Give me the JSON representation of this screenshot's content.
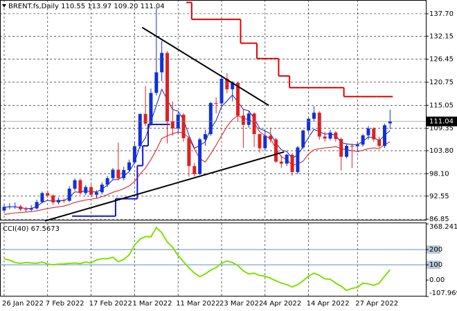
{
  "chart_data": {
    "type": "candlestick",
    "header": "BRENT.fs,Daily  110.55 113.97 109.20 111.04",
    "up_color": "#1030d8",
    "down_color": "#e02020",
    "grid": true,
    "categories": [
      "26 Jan 2022",
      null,
      null,
      null,
      null,
      null,
      null,
      null,
      "7 Feb 2022",
      null,
      null,
      null,
      null,
      null,
      null,
      null,
      "17 Feb 2022",
      null,
      null,
      null,
      null,
      null,
      null,
      null,
      "1 Mar 2022",
      null,
      null,
      null,
      null,
      null,
      null,
      null,
      "11 Mar 2022",
      null,
      null,
      null,
      null,
      null,
      null,
      null,
      "23 Mar 2022",
      null,
      null,
      null,
      null,
      null,
      null,
      null,
      "4 Apr 2022",
      null,
      null,
      null,
      null,
      null,
      null,
      null,
      "14 Apr 2022",
      null,
      null,
      null,
      null,
      null,
      null,
      null,
      null,
      "27 Apr 2022",
      null,
      null,
      null,
      null,
      null,
      null
    ],
    "ohlc": [
      [
        89.0,
        90.6,
        88.6,
        89.9
      ],
      [
        89.9,
        90.8,
        89.3,
        90.0
      ],
      [
        90.0,
        91.0,
        89.4,
        90.0
      ],
      [
        90.0,
        90.4,
        88.9,
        89.3
      ],
      [
        89.3,
        89.9,
        88.6,
        89.2
      ],
      [
        89.2,
        90.3,
        88.8,
        89.5
      ],
      [
        89.5,
        91.7,
        89.2,
        91.1
      ],
      [
        91.1,
        93.7,
        90.8,
        93.3
      ],
      [
        93.3,
        94.0,
        92.1,
        92.7
      ],
      [
        92.7,
        93.0,
        90.4,
        91.0
      ],
      [
        91.0,
        92.2,
        90.5,
        91.6
      ],
      [
        91.6,
        92.0,
        90.9,
        91.4
      ],
      [
        91.4,
        95.0,
        91.1,
        94.4
      ],
      [
        94.4,
        96.9,
        93.9,
        96.5
      ],
      [
        96.5,
        96.9,
        92.9,
        93.3
      ],
      [
        93.3,
        95.3,
        92.8,
        94.8
      ],
      [
        94.8,
        95.4,
        92.4,
        92.9
      ],
      [
        92.9,
        94.0,
        92.0,
        93.5
      ],
      [
        93.5,
        96.0,
        93.0,
        95.4
      ],
      [
        95.4,
        97.5,
        94.8,
        97.0
      ],
      [
        97.0,
        99.5,
        96.6,
        99.1
      ],
      [
        99.1,
        105.8,
        96.4,
        97.0
      ],
      [
        97.0,
        99.8,
        96.4,
        99.0
      ],
      [
        99.0,
        101.6,
        98.5,
        100.9
      ],
      [
        100.9,
        106.0,
        100.5,
        104.9
      ],
      [
        104.9,
        113.0,
        104.3,
        112.9
      ],
      [
        112.9,
        119.8,
        109.9,
        110.5
      ],
      [
        110.5,
        119.2,
        110.0,
        118.1
      ],
      [
        118.1,
        139.1,
        117.5,
        123.2
      ],
      [
        123.2,
        131.0,
        121.0,
        128.0
      ],
      [
        128.0,
        128.4,
        105.6,
        111.1
      ],
      [
        111.1,
        116.0,
        107.5,
        109.3
      ],
      [
        109.3,
        113.2,
        108.0,
        112.7
      ],
      [
        112.7,
        113.1,
        106.0,
        106.9
      ],
      [
        106.9,
        107.4,
        97.4,
        100.0
      ],
      [
        100.0,
        100.8,
        97.4,
        98.0
      ],
      [
        98.0,
        107.0,
        97.8,
        106.6
      ],
      [
        106.6,
        109.0,
        105.0,
        107.9
      ],
      [
        107.9,
        115.9,
        107.5,
        115.6
      ],
      [
        115.6,
        117.0,
        113.0,
        115.5
      ],
      [
        115.5,
        122.0,
        114.8,
        121.6
      ],
      [
        121.6,
        123.0,
        118.0,
        119.0
      ],
      [
        119.0,
        121.0,
        116.0,
        120.6
      ],
      [
        120.6,
        120.8,
        111.0,
        112.5
      ],
      [
        112.5,
        114.0,
        104.5,
        110.2
      ],
      [
        110.2,
        113.6,
        109.5,
        113.0
      ],
      [
        113.0,
        113.3,
        104.7,
        107.9
      ],
      [
        107.9,
        108.0,
        103.3,
        104.4
      ],
      [
        104.4,
        108.7,
        103.8,
        107.5
      ],
      [
        107.5,
        109.5,
        105.8,
        106.6
      ],
      [
        106.6,
        107.0,
        100.8,
        101.1
      ],
      [
        101.1,
        102.6,
        99.5,
        100.6
      ],
      [
        100.6,
        103.0,
        100.0,
        102.8
      ],
      [
        102.8,
        103.2,
        97.6,
        98.5
      ],
      [
        98.5,
        105.0,
        98.0,
        104.6
      ],
      [
        104.6,
        109.0,
        104.2,
        108.8
      ],
      [
        108.8,
        112.0,
        108.3,
        111.7
      ],
      [
        111.7,
        114.8,
        111.0,
        113.2
      ],
      [
        113.2,
        113.6,
        106.5,
        107.3
      ],
      [
        107.3,
        108.5,
        106.0,
        106.8
      ],
      [
        106.8,
        109.0,
        106.4,
        108.3
      ],
      [
        108.3,
        108.6,
        106.0,
        106.7
      ],
      [
        106.7,
        107.0,
        98.9,
        102.3
      ],
      [
        102.3,
        105.4,
        101.9,
        105.0
      ],
      [
        105.0,
        105.6,
        99.5,
        104.9
      ],
      [
        104.9,
        106.0,
        103.5,
        105.3
      ],
      [
        105.3,
        108.0,
        104.8,
        107.6
      ],
      [
        107.6,
        109.9,
        106.5,
        109.3
      ],
      [
        109.3,
        109.6,
        106.0,
        106.6
      ],
      [
        106.6,
        107.3,
        104.5,
        104.97
      ],
      [
        104.97,
        110.5,
        104.5,
        110.1
      ],
      [
        110.55,
        113.97,
        109.2,
        111.04
      ]
    ],
    "ylim": [
      86.7,
      141.1
    ],
    "yticks": [
      {
        "value": 137.7,
        "label": "137.70"
      },
      132.15,
      126.45,
      120.75,
      115.05,
      109.35,
      {
        "value": 103.8,
        "label": "103.80"
      },
      {
        "value": 98.1,
        "label": "98.10"
      },
      92.55,
      86.85
    ],
    "lines": [
      {
        "color": "#1a1aa8",
        "values": [
          89.8,
          89.9,
          89.9,
          89.7,
          89.5,
          89.5,
          90.0,
          91.0,
          91.5,
          91.3,
          91.4,
          91.4,
          92.3,
          93.6,
          93.5,
          94.0,
          93.6,
          93.6,
          94.3,
          95.3,
          96.6,
          96.7,
          97.5,
          98.6,
          100.9,
          105.0,
          107.0,
          111.0,
          115.0,
          119.0,
          116.4,
          114.0,
          113.6,
          111.4,
          107.6,
          104.4,
          105.1,
          106.0,
          109.2,
          111.3,
          114.7,
          116.1,
          117.6,
          115.9,
          114.0,
          113.7,
          111.8,
          109.3,
          108.7,
          108.0,
          105.7,
          104.0,
          103.6,
          101.9,
          102.8,
          104.8,
          107.1,
          109.1,
          108.5,
          107.9,
          108.0,
          107.6,
          105.8,
          105.5,
          105.3,
          105.3,
          106.1,
          107.2,
          107.0,
          106.3,
          107.6,
          108.8
        ]
      },
      {
        "color": "#e01010",
        "values": [
          88.0,
          88.2,
          88.4,
          88.5,
          88.6,
          88.7,
          88.9,
          89.2,
          89.5,
          89.7,
          89.9,
          90.1,
          90.5,
          91.0,
          91.3,
          91.6,
          91.8,
          92.0,
          92.4,
          92.9,
          93.5,
          93.9,
          94.4,
          95.1,
          96.2,
          98.0,
          99.5,
          101.6,
          104.0,
          106.8,
          107.5,
          108.0,
          108.4,
          108.2,
          106.9,
          104.2,
          101.8,
          101.0,
          103.0,
          105.2,
          107.5,
          109.8,
          111.5,
          112.5,
          111.8,
          111.5,
          110.7,
          108.5,
          107.5,
          106.8,
          104.3,
          102.3,
          101.6,
          100.2,
          100.5,
          101.2,
          103.0,
          104.0,
          104.3,
          104.5,
          104.6,
          104.8,
          104.3,
          104.0,
          103.8,
          103.6,
          103.9,
          104.3,
          104.5,
          104.3,
          105.3,
          106.0
        ]
      }
    ],
    "steps": [
      {
        "color": "#e00000",
        "values": [
          null,
          null,
          null,
          null,
          null,
          null,
          null,
          null,
          null,
          null,
          null,
          null,
          null,
          null,
          null,
          null,
          null,
          null,
          null,
          null,
          null,
          null,
          null,
          null,
          null,
          null,
          null,
          null,
          null,
          null,
          null,
          null,
          null,
          null,
          140.5,
          136.3,
          136.3,
          136.3,
          136.3,
          136.3,
          136.3,
          136.3,
          136.3,
          136.3,
          130.4,
          130.4,
          130.4,
          126.6,
          126.6,
          126.6,
          126.6,
          122.3,
          122.3,
          119.4,
          119.4,
          119.4,
          119.4,
          119.4,
          119.4,
          119.4,
          119.4,
          119.4,
          119.4,
          117.2,
          117.2,
          117.2,
          117.2,
          117.2,
          117.2,
          117.2,
          117.2,
          117.2
        ]
      },
      {
        "color": "#1010e0",
        "values": [
          null,
          null,
          null,
          null,
          null,
          null,
          null,
          null,
          null,
          null,
          null,
          null,
          null,
          87.6,
          87.6,
          87.6,
          87.6,
          87.6,
          87.6,
          87.6,
          87.6,
          91.9,
          91.9,
          91.9,
          91.9,
          100.1,
          105.0,
          110.3,
          110.3,
          110.3,
          110.3,
          null,
          null,
          null,
          null,
          null,
          null,
          null,
          null,
          null,
          null,
          null,
          null,
          null,
          null,
          null,
          null,
          null,
          null,
          null,
          null,
          null,
          null,
          null,
          null,
          null,
          null,
          null,
          null,
          null,
          null,
          null,
          null,
          null,
          null,
          null,
          null,
          null,
          null,
          null,
          null,
          null
        ]
      }
    ],
    "trendlines": [
      {
        "color": "#000000",
        "x": [
          25.4,
          48.7
        ],
        "y": [
          134.3,
          115.0
        ]
      },
      {
        "color": "#000000",
        "x": [
          7.5,
          51.5
        ],
        "y": [
          86.4,
          103.5
        ]
      }
    ],
    "indicator": {
      "label": "CCI(40) 67.5673",
      "color": "#7fe000",
      "level_color": "#5b8fc4",
      "ylim": [
        -107.969,
        368.2416
      ],
      "yticks": [
        368.2416,
        200,
        100,
        {
          "value": 0,
          "label": "0.00"
        },
        -107.969
      ],
      "levels": [
        200,
        100
      ],
      "values": [
        140,
        130,
        115,
        110,
        115,
        112,
        110,
        118,
        105,
        100,
        104,
        106,
        110,
        112,
        108,
        118,
        112,
        132,
        140,
        140,
        150,
        120,
        135,
        165,
        230,
        268,
        285,
        283,
        345,
        310,
        250,
        215,
        160,
        120,
        80,
        45,
        22,
        40,
        65,
        82,
        110,
        125,
        115,
        95,
        60,
        40,
        45,
        30,
        25,
        12,
        -5,
        -20,
        -30,
        -45,
        -30,
        -5,
        25,
        45,
        30,
        8,
        5,
        -20,
        -40,
        -68,
        -55,
        -48,
        -20,
        -25,
        -35,
        -20,
        25,
        67.5673
      ]
    }
  }
}
